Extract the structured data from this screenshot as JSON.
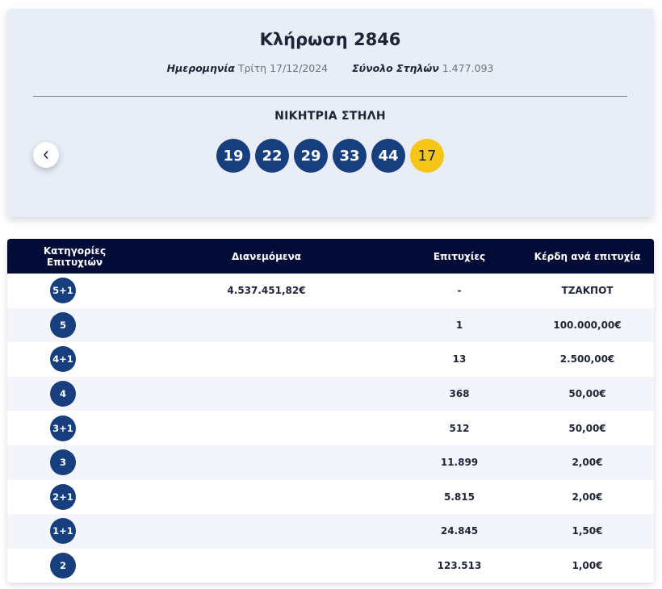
{
  "draw": {
    "title": "Κλήρωση 2846",
    "date_label": "Ημερομηνία",
    "date_value": "Τρίτη 17/12/2024",
    "columns_label": "Σύνολο Στηλών",
    "columns_value": "1.477.093",
    "winning_title": "ΝΙΚΗΤΡΙΑ ΣΤΗΛΗ",
    "numbers": [
      "19",
      "22",
      "29",
      "33",
      "44"
    ],
    "bonus": "17",
    "ball_color": "#173f7d",
    "bonus_color": "#f5c518"
  },
  "table": {
    "headers": {
      "category": "Κατηγορίες Επιτυχιών",
      "distributed": "Διανεμόμενα",
      "winners": "Επιτυχίες",
      "prize": "Κέρδη ανά επιτυχία"
    },
    "header_color": "#020c36",
    "rows": [
      {
        "category": "5+1",
        "distributed": "4.537.451,82€",
        "winners": "-",
        "prize": "ΤΖΑΚΠΟΤ"
      },
      {
        "category": "5",
        "distributed": "",
        "winners": "1",
        "prize": "100.000,00€"
      },
      {
        "category": "4+1",
        "distributed": "",
        "winners": "13",
        "prize": "2.500,00€"
      },
      {
        "category": "4",
        "distributed": "",
        "winners": "368",
        "prize": "50,00€"
      },
      {
        "category": "3+1",
        "distributed": "",
        "winners": "512",
        "prize": "50,00€"
      },
      {
        "category": "3",
        "distributed": "",
        "winners": "11.899",
        "prize": "2,00€"
      },
      {
        "category": "2+1",
        "distributed": "",
        "winners": "5.815",
        "prize": "2,00€"
      },
      {
        "category": "1+1",
        "distributed": "",
        "winners": "24.845",
        "prize": "1,50€"
      },
      {
        "category": "2",
        "distributed": "",
        "winners": "123.513",
        "prize": "1,00€"
      }
    ]
  },
  "icons": {
    "prev": "chevron-left-icon"
  }
}
